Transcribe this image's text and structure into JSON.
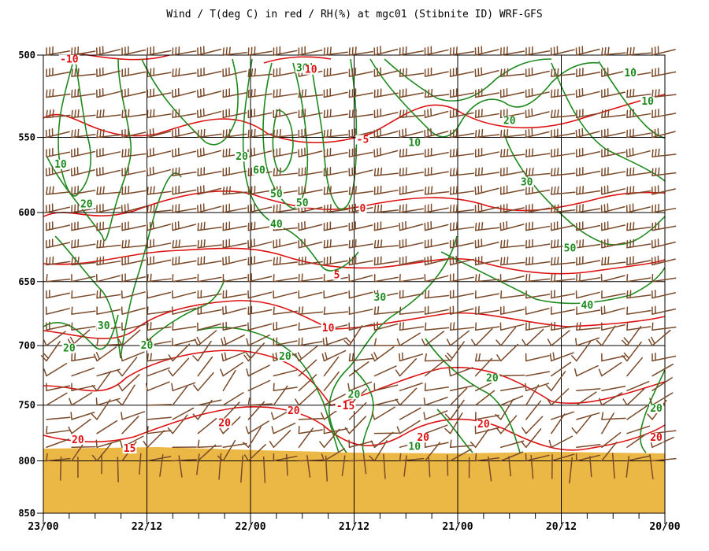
{
  "chart_data": {
    "type": "line",
    "title": "Wind / T(deg C) in red / RH(%) at mgc01 (Stibnite ID)  WRF-GFS",
    "y_axis": {
      "label": "",
      "scale": "log-pressure, inverted",
      "range": [
        850,
        500
      ],
      "ticks": [
        "500",
        "550",
        "600",
        "650",
        "700",
        "750",
        "800",
        "850"
      ]
    },
    "x_axis": {
      "label": "",
      "direction": "time decreasing to the right",
      "ticks": [
        "23/00",
        "22/12",
        "22/00",
        "21/12",
        "21/00",
        "20/12",
        "20/00"
      ]
    },
    "grid": true,
    "colors": {
      "temperature": "#dd1111",
      "rh": "#1e8a1e",
      "wind": "#7a4a2a",
      "terrain": "#ebb845",
      "grid": "#000000"
    },
    "temperature_isotherms": [
      {
        "value": -10,
        "label": "-10"
      },
      {
        "value": -5,
        "label": "-5"
      },
      {
        "value": 0,
        "label": "0"
      },
      {
        "value": 5,
        "label": "5"
      },
      {
        "value": 10,
        "label": "10"
      },
      {
        "value": 15,
        "label": "15"
      },
      {
        "value": 20,
        "label": "20"
      }
    ],
    "temperature_labels": [
      {
        "text": "-10",
        "time": "22/21",
        "p": 504
      },
      {
        "text": "10",
        "time": "21/17",
        "p": 510
      },
      {
        "text": "-5",
        "time": "21/11",
        "p": 553
      },
      {
        "text": "0",
        "time": "21/11",
        "p": 599
      },
      {
        "text": "5",
        "time": "21/14",
        "p": 647
      },
      {
        "text": "10",
        "time": "21/15",
        "p": 688
      },
      {
        "text": "-15",
        "time": "21/13",
        "p": 753
      },
      {
        "text": "20",
        "time": "22/20",
        "p": 783
      },
      {
        "text": "20",
        "time": "22/03",
        "p": 768
      },
      {
        "text": "20",
        "time": "21/19",
        "p": 757
      },
      {
        "text": "20",
        "time": "21/04",
        "p": 781
      },
      {
        "text": "20",
        "time": "20/21",
        "p": 769
      },
      {
        "text": "20",
        "time": "20/01",
        "p": 781
      },
      {
        "text": "15",
        "time": "22/14",
        "p": 791
      }
    ],
    "rh_labels": [
      {
        "text": "30",
        "time": "21/18",
        "p": 509
      },
      {
        "text": "10",
        "time": "20/04",
        "p": 512
      },
      {
        "text": "10",
        "time": "20/02",
        "p": 529
      },
      {
        "text": "20",
        "time": "20/18",
        "p": 541
      },
      {
        "text": "10",
        "time": "21/05",
        "p": 555
      },
      {
        "text": "10",
        "time": "22/22",
        "p": 569
      },
      {
        "text": "20",
        "time": "22/01",
        "p": 564
      },
      {
        "text": "60",
        "time": "21/23",
        "p": 573
      },
      {
        "text": "30",
        "time": "20/16",
        "p": 581
      },
      {
        "text": "50",
        "time": "21/21",
        "p": 589
      },
      {
        "text": "50",
        "time": "21/18",
        "p": 595
      },
      {
        "text": "20",
        "time": "22/19",
        "p": 596
      },
      {
        "text": "40",
        "time": "21/21",
        "p": 610
      },
      {
        "text": "50",
        "time": "20/11",
        "p": 627
      },
      {
        "text": "30",
        "time": "21/09",
        "p": 664
      },
      {
        "text": "40",
        "time": "20/09",
        "p": 670
      },
      {
        "text": "30",
        "time": "22/17",
        "p": 686
      },
      {
        "text": "20",
        "time": "22/21",
        "p": 704
      },
      {
        "text": "20",
        "time": "22/12",
        "p": 702
      },
      {
        "text": "20",
        "time": "21/20",
        "p": 711
      },
      {
        "text": "20",
        "time": "20/20",
        "p": 729
      },
      {
        "text": "20",
        "time": "21/12",
        "p": 743
      },
      {
        "text": "20",
        "time": "20/01",
        "p": 755
      },
      {
        "text": "10",
        "time": "21/05",
        "p": 789
      }
    ]
  }
}
